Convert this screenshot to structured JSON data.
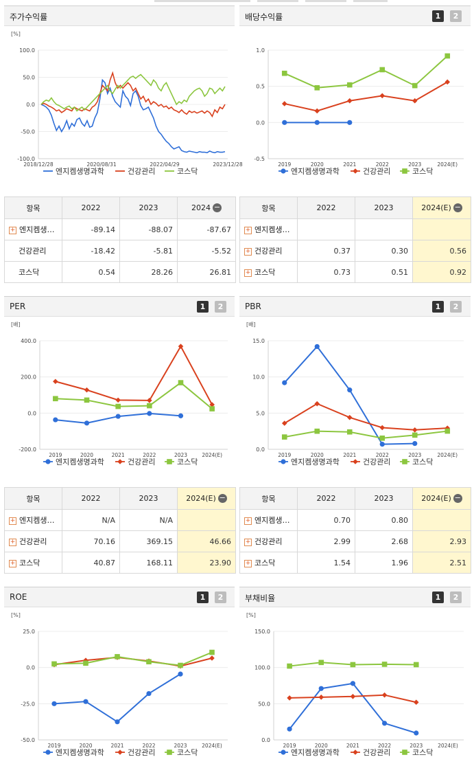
{
  "colors": {
    "engchem": "#2f6fd8",
    "health": "#d9411e",
    "kosdaq": "#8cc63f"
  },
  "legend": [
    "엔지켐생명과학",
    "건강관리",
    "코스닥"
  ],
  "stock": {
    "title": "주가수익률",
    "chart_data": {
      "type": "line",
      "unit": "[%]",
      "ylim": [
        -100,
        100
      ],
      "yticks": [
        "100.0",
        "50.0",
        "0.0",
        "-50.0",
        "-100.0"
      ],
      "xticks": [
        "2018/12/28",
        "2020/08/31",
        "2022/04/29",
        "2023/12/28"
      ],
      "series": [
        {
          "name": "엔지켐생명과학",
          "values": [
            0,
            -2,
            -5,
            -10,
            -20,
            -35,
            -48,
            -40,
            -50,
            -42,
            -30,
            -45,
            -35,
            -40,
            -28,
            -25,
            -35,
            -40,
            -30,
            -42,
            -40,
            -25,
            -15,
            10,
            45,
            40,
            20,
            30,
            15,
            5,
            0,
            -5,
            25,
            15,
            10,
            -2,
            20,
            25,
            15,
            -2,
            -10,
            -8,
            -5,
            -15,
            -25,
            -40,
            -50,
            -55,
            -62,
            -68,
            -72,
            -78,
            -82,
            -80,
            -78,
            -85,
            -87,
            -88,
            -86,
            -87,
            -88,
            -89,
            -87,
            -88,
            -88,
            -89,
            -86,
            -88,
            -89,
            -87,
            -88,
            -88,
            -87
          ]
        },
        {
          "name": "건강관리",
          "values": [
            0,
            2,
            0,
            -3,
            -5,
            -8,
            -12,
            -10,
            -15,
            -12,
            -8,
            -10,
            -12,
            -5,
            -8,
            -10,
            -12,
            -8,
            -10,
            -12,
            -5,
            -2,
            5,
            20,
            35,
            30,
            25,
            45,
            58,
            40,
            30,
            35,
            30,
            35,
            40,
            35,
            25,
            30,
            20,
            10,
            15,
            5,
            10,
            0,
            5,
            2,
            -3,
            0,
            -5,
            -3,
            -8,
            -5,
            -10,
            -12,
            -15,
            -10,
            -15,
            -18,
            -12,
            -15,
            -13,
            -16,
            -14,
            -12,
            -16,
            -12,
            -15,
            -22,
            -10,
            -15,
            -5,
            -8,
            0
          ]
        },
        {
          "name": "코스닥",
          "values": [
            0,
            5,
            8,
            6,
            12,
            5,
            0,
            -2,
            -5,
            -8,
            -5,
            -3,
            -8,
            -5,
            -12,
            -8,
            -5,
            -10,
            -5,
            0,
            5,
            10,
            15,
            20,
            25,
            30,
            35,
            25,
            20,
            28,
            35,
            30,
            35,
            40,
            45,
            50,
            52,
            48,
            52,
            55,
            50,
            45,
            40,
            35,
            45,
            40,
            30,
            25,
            35,
            40,
            30,
            20,
            10,
            0,
            5,
            2,
            8,
            5,
            15,
            20,
            25,
            28,
            30,
            25,
            15,
            20,
            30,
            28,
            20,
            25,
            30,
            25,
            33
          ]
        }
      ]
    }
  },
  "dividend": {
    "title": "배당수익률",
    "btn1": "1",
    "btn2": "2",
    "chart_data": {
      "type": "line",
      "ylim": [
        -0.5,
        1.0
      ],
      "yticks": [
        "1.0",
        "0.5",
        "0.0",
        "-0.5"
      ],
      "categories": [
        "2019",
        "2020",
        "2021",
        "2022",
        "2023",
        "2024(E)"
      ],
      "series": [
        {
          "name": "엔지켐생명과학",
          "values": [
            0.0,
            0.0,
            0.0,
            null,
            null,
            null
          ]
        },
        {
          "name": "건강관리",
          "values": [
            0.26,
            0.16,
            0.3,
            0.37,
            0.3,
            0.56
          ]
        },
        {
          "name": "코스닥",
          "values": [
            0.68,
            0.48,
            0.52,
            0.73,
            0.51,
            0.92
          ]
        }
      ]
    }
  },
  "per": {
    "title": "PER",
    "btn1": "1",
    "btn2": "2",
    "chart_data": {
      "type": "line",
      "unit": "[배]",
      "ylim": [
        -200,
        400
      ],
      "yticks": [
        "400.0",
        "200.0",
        "0.0",
        "-200.0"
      ],
      "categories": [
        "2019",
        "2020",
        "2021",
        "2022",
        "2023",
        "2024(E)"
      ],
      "series": [
        {
          "name": "엔지켐생명과학",
          "values": [
            -37,
            -55,
            -18,
            -2,
            -15,
            null
          ]
        },
        {
          "name": "건강관리",
          "values": [
            175,
            128,
            72,
            70.16,
            369.15,
            46.66
          ]
        },
        {
          "name": "코스닥",
          "values": [
            80,
            72,
            37,
            40.87,
            168.11,
            23.9
          ]
        }
      ]
    }
  },
  "pbr": {
    "title": "PBR",
    "btn1": "1",
    "btn2": "2",
    "chart_data": {
      "type": "line",
      "unit": "[배]",
      "ylim": [
        0,
        15
      ],
      "yticks": [
        "15.0",
        "10.0",
        "5.0",
        "0.0"
      ],
      "categories": [
        "2019",
        "2020",
        "2021",
        "2022",
        "2023",
        "2024(E)"
      ],
      "series": [
        {
          "name": "엔지켐생명과학",
          "values": [
            9.2,
            14.2,
            8.2,
            0.7,
            0.8,
            null
          ]
        },
        {
          "name": "건강관리",
          "values": [
            3.6,
            6.3,
            4.4,
            2.99,
            2.68,
            2.93
          ]
        },
        {
          "name": "코스닥",
          "values": [
            1.7,
            2.5,
            2.4,
            1.54,
            1.96,
            2.51
          ]
        }
      ]
    }
  },
  "roe": {
    "title": "ROE",
    "btn1": "1",
    "btn2": "2",
    "chart_data": {
      "type": "line",
      "unit": "[%]",
      "ylim": [
        -50,
        25
      ],
      "yticks": [
        "25.0",
        "0.0",
        "-25.0",
        "-50.0"
      ],
      "categories": [
        "2019",
        "2020",
        "2021",
        "2022",
        "2023",
        "2024(E)"
      ],
      "series": [
        {
          "name": "엔지켐생명과학",
          "values": [
            -25,
            -23.5,
            -37.5,
            -18,
            -4.5,
            null
          ]
        },
        {
          "name": "건강관리",
          "values": [
            2,
            5,
            7,
            4.5,
            1,
            6.5
          ]
        },
        {
          "name": "코스닥",
          "values": [
            2.5,
            3,
            7.5,
            4,
            1.5,
            10.5
          ]
        }
      ]
    }
  },
  "debt": {
    "title": "부채비율",
    "btn1": "1",
    "btn2": "2",
    "chart_data": {
      "type": "line",
      "unit": "[%]",
      "ylim": [
        0,
        150
      ],
      "yticks": [
        "150.0",
        "100.0",
        "50.0",
        "0.0"
      ],
      "categories": [
        "2019",
        "2020",
        "2021",
        "2022",
        "2023",
        "2024(E)"
      ],
      "series": [
        {
          "name": "엔지켐생명과학",
          "values": [
            15,
            71,
            78,
            23,
            9.5,
            null
          ]
        },
        {
          "name": "건강관리",
          "values": [
            58,
            59,
            60,
            62,
            52,
            null
          ]
        },
        {
          "name": "코스닥",
          "values": [
            102,
            107,
            104,
            104.5,
            104,
            null
          ]
        }
      ]
    }
  },
  "table_stock": {
    "headers": [
      "항목",
      "2022",
      "2023",
      "2024"
    ],
    "rows": [
      {
        "name": "엔지켐생…",
        "plus": true,
        "v": [
          "-89.14",
          "-88.07",
          "-87.67"
        ]
      },
      {
        "name": "건강관리",
        "plus": false,
        "v": [
          "-18.42",
          "-5.81",
          "-5.52"
        ]
      },
      {
        "name": "코스닥",
        "plus": false,
        "v": [
          "0.54",
          "28.26",
          "26.81"
        ]
      }
    ]
  },
  "table_dividend": {
    "headers": [
      "항목",
      "2022",
      "2023",
      "2024(E)"
    ],
    "rows": [
      {
        "name": "엔지켐생…",
        "plus": true,
        "v": [
          "",
          "",
          ""
        ]
      },
      {
        "name": "건강관리",
        "plus": true,
        "v": [
          "0.37",
          "0.30",
          "0.56"
        ]
      },
      {
        "name": "코스닥",
        "plus": true,
        "v": [
          "0.73",
          "0.51",
          "0.92"
        ]
      }
    ]
  },
  "table_per": {
    "headers": [
      "항목",
      "2022",
      "2023",
      "2024(E)"
    ],
    "rows": [
      {
        "name": "엔지켐생…",
        "plus": true,
        "v": [
          "N/A",
          "N/A",
          ""
        ]
      },
      {
        "name": "건강관리",
        "plus": true,
        "v": [
          "70.16",
          "369.15",
          "46.66"
        ]
      },
      {
        "name": "코스닥",
        "plus": true,
        "v": [
          "40.87",
          "168.11",
          "23.90"
        ]
      }
    ]
  },
  "table_pbr": {
    "headers": [
      "항목",
      "2022",
      "2023",
      "2024(E)"
    ],
    "rows": [
      {
        "name": "엔지켐생…",
        "plus": true,
        "v": [
          "0.70",
          "0.80",
          ""
        ]
      },
      {
        "name": "건강관리",
        "plus": true,
        "v": [
          "2.99",
          "2.68",
          "2.93"
        ]
      },
      {
        "name": "코스닥",
        "plus": true,
        "v": [
          "1.54",
          "1.96",
          "2.51"
        ]
      }
    ]
  }
}
